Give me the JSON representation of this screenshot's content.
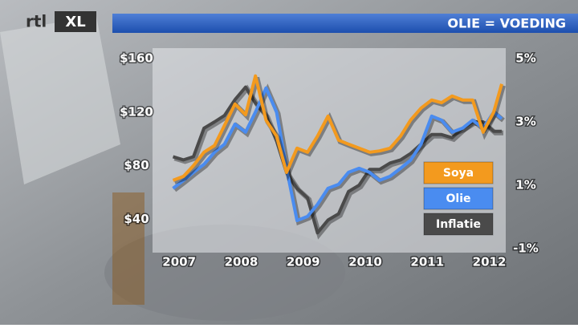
{
  "logo": [
    "rtl",
    "XL"
  ],
  "chart_data": {
    "type": "line",
    "title": "OLIE = VOEDING",
    "x": [
      2006.9,
      2007.07,
      2007.23,
      2007.4,
      2007.57,
      2007.73,
      2007.9,
      2008.07,
      2008.23,
      2008.4,
      2008.57,
      2008.73,
      2008.9,
      2009.07,
      2009.23,
      2009.4,
      2009.57,
      2009.73,
      2009.9,
      2010.07,
      2010.23,
      2010.4,
      2010.57,
      2010.73,
      2010.9,
      2011.07,
      2011.23,
      2011.4,
      2011.57,
      2011.73,
      2011.9,
      2012.07,
      2012.2
    ],
    "series": [
      {
        "name": "Soya",
        "color": "#f39a1e",
        "values": [
          69,
          72,
          80,
          90,
          95,
          110,
          126,
          118,
          147,
          114,
          102,
          75,
          93,
          90,
          102,
          117,
          99,
          96,
          93,
          90,
          91,
          93,
          102,
          114,
          123,
          129,
          127,
          132,
          129,
          129,
          105,
          120,
          141
        ]
      },
      {
        "name": "Olie",
        "color": "#4a8cf0",
        "values": [
          63,
          69,
          75,
          81,
          90,
          96,
          111,
          105,
          120,
          138,
          120,
          78,
          39,
          42,
          51,
          63,
          66,
          75,
          78,
          75,
          69,
          72,
          78,
          84,
          96,
          117,
          114,
          105,
          108,
          114,
          108,
          120,
          115
        ]
      },
      {
        "name": "Inflatie",
        "color": "#4a4a4a",
        "axis": "y2",
        "values": [
          1.9,
          1.8,
          1.9,
          2.8,
          3.0,
          3.2,
          3.7,
          4.1,
          3.6,
          3.2,
          2.4,
          1.4,
          0.9,
          0.6,
          -0.5,
          -0.1,
          0.1,
          0.8,
          1.0,
          1.5,
          1.5,
          1.7,
          1.8,
          2.0,
          2.3,
          2.6,
          2.6,
          2.5,
          2.8,
          3.0,
          3.0,
          2.7,
          2.7
        ]
      }
    ],
    "xlim": [
      2006.7,
      2012.2
    ],
    "xticks": [
      2007,
      2008,
      2009,
      2010,
      2011,
      2012
    ],
    "ylim": [
      18,
      160
    ],
    "yticks": [
      {
        "value": 40,
        "label": "$40"
      },
      {
        "value": 80,
        "label": "$80"
      },
      {
        "value": 120,
        "label": "$120"
      },
      {
        "value": 160,
        "label": "$160"
      }
    ],
    "y2lim": [
      -1,
      5
    ],
    "y2ticks": [
      {
        "value": -1,
        "label": "-1%"
      },
      {
        "value": 1,
        "label": "1%"
      },
      {
        "value": 3,
        "label": "3%"
      },
      {
        "value": 5,
        "label": "5%"
      }
    ],
    "legend": "right"
  }
}
